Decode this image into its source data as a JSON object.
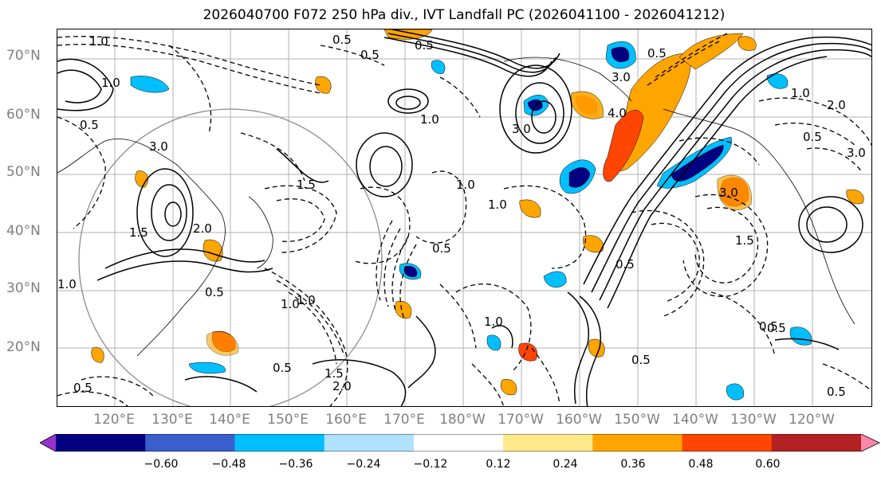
{
  "title": "2026040700 F072 250 hPa div., IVT Landfall PC (2026041100 - 2026041212)",
  "map": {
    "lat_labels": [
      "70°N",
      "60°N",
      "50°N",
      "40°N",
      "30°N",
      "20°N"
    ],
    "lon_labels": [
      "120°E",
      "130°E",
      "140°E",
      "150°E",
      "160°E",
      "170°E",
      "180°W",
      "170°W",
      "160°W",
      "150°W",
      "140°W",
      "130°W",
      "120°W"
    ],
    "contour_labels": [
      "1.0",
      "0.5",
      "1.0",
      "3.0",
      "1.0",
      "0.5",
      "1.5",
      "0.5",
      "0.5",
      "1.0",
      "0.5",
      "0.5",
      "3.0",
      "4.0",
      "3.0",
      "1.0",
      "0.5",
      "2.0",
      "0.5",
      "3.0",
      "3.0",
      "1.5",
      "0.5",
      "0.5",
      "1.0",
      "1.5",
      "1.0",
      "0.5",
      "2.0",
      "0.5",
      "1.0",
      "0.5",
      "0.5",
      "0.5",
      "1.5",
      "1.0",
      "2.0",
      "1.0"
    ],
    "colors": {
      "contour": "#000000",
      "grid": "#b0b0b0",
      "coast": "#000000",
      "circle": "#8c8c8c"
    }
  },
  "colorbar": {
    "ticks": [
      "−0.60",
      "−0.48",
      "−0.36",
      "−0.24",
      "−0.12",
      "0.12",
      "0.24",
      "0.36",
      "0.48",
      "0.60"
    ],
    "colors": [
      "#9932cc",
      "#000080",
      "#3a5fcd",
      "#00bfff",
      "#b0e2ff",
      "#ffffff",
      "#ffe98b",
      "#ffa500",
      "#ff4500",
      "#b22222",
      "#ff88aa"
    ]
  }
}
